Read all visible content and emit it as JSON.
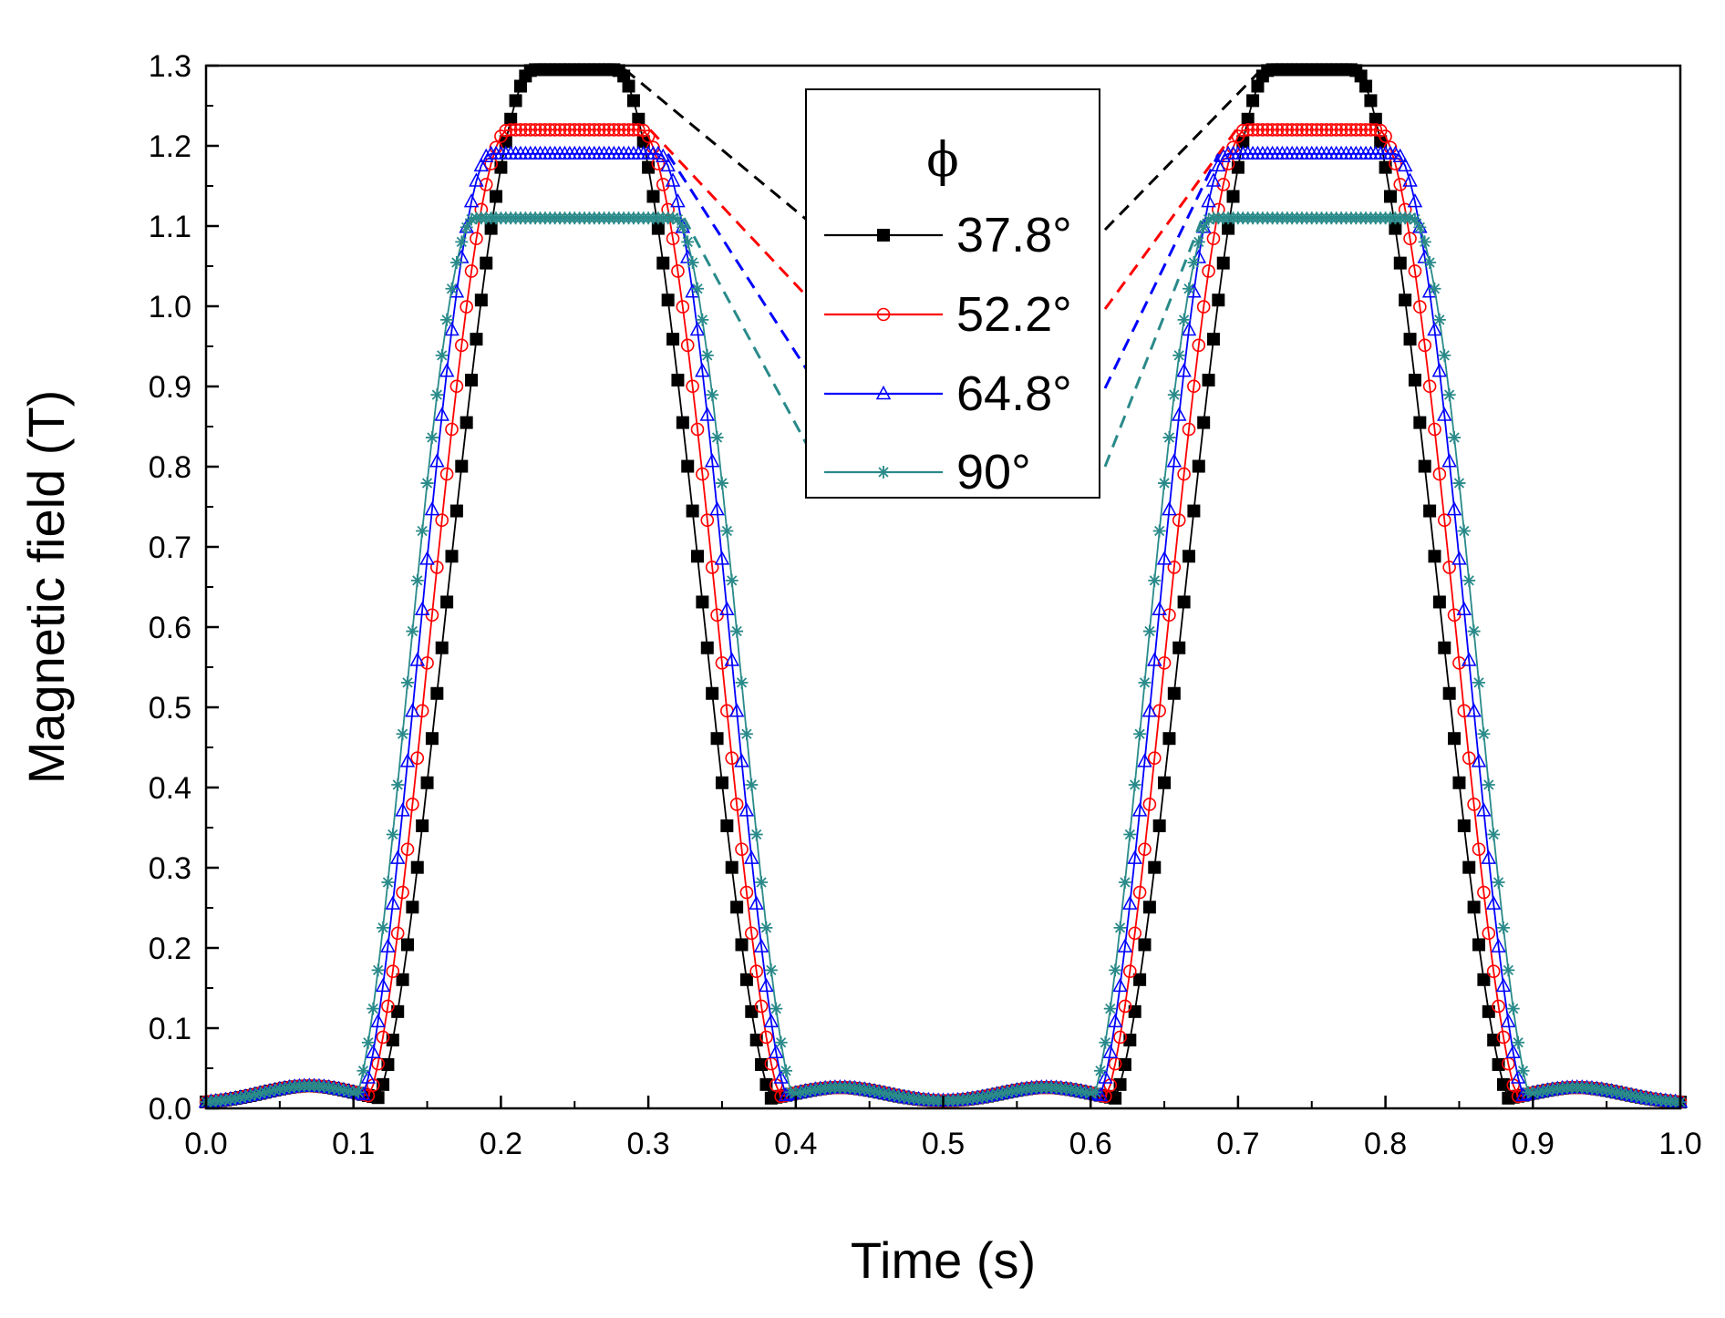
{
  "chart_data": {
    "type": "scatter",
    "xlabel": "Time (s)",
    "ylabel": "Magnetic field (T)",
    "xlim": [
      0.0,
      1.0
    ],
    "ylim": [
      0.0,
      1.3
    ],
    "xticks": [
      "0.0",
      "0.1",
      "0.2",
      "0.3",
      "0.4",
      "0.5",
      "0.6",
      "0.7",
      "0.8",
      "0.9",
      "1.0"
    ],
    "yticks": [
      "0.0",
      "0.1",
      "0.2",
      "0.3",
      "0.4",
      "0.5",
      "0.6",
      "0.7",
      "0.8",
      "0.9",
      "1.0",
      "1.1",
      "1.2",
      "1.3"
    ],
    "legend": {
      "title": "ϕ",
      "placement": "top-center",
      "entries": [
        "37.8°",
        "52.2°",
        "64.8°",
        "90°"
      ]
    },
    "series": [
      {
        "name": "37.8°",
        "color": "#000000",
        "marker": "square",
        "peak": 1.295,
        "pulses": [
          {
            "start": 0.112,
            "peak_start": 0.222,
            "peak_end": 0.278,
            "end": 0.388
          },
          {
            "start": 0.612,
            "peak_start": 0.722,
            "peak_end": 0.778,
            "end": 0.888
          }
        ]
      },
      {
        "name": "52.2°",
        "color": "#ff0000",
        "marker": "circle",
        "peak": 1.22,
        "pulses": [
          {
            "start": 0.106,
            "peak_start": 0.205,
            "peak_end": 0.295,
            "end": 0.394
          },
          {
            "start": 0.606,
            "peak_start": 0.705,
            "peak_end": 0.795,
            "end": 0.894
          }
        ]
      },
      {
        "name": "64.8°",
        "color": "#0000ff",
        "marker": "triangle",
        "peak": 1.19,
        "pulses": [
          {
            "start": 0.102,
            "peak_start": 0.193,
            "peak_end": 0.307,
            "end": 0.398
          },
          {
            "start": 0.602,
            "peak_start": 0.693,
            "peak_end": 0.807,
            "end": 0.898
          }
        ]
      },
      {
        "name": "90°",
        "color": "#2a8a8a",
        "marker": "star",
        "peak": 1.11,
        "pulses": [
          {
            "start": 0.098,
            "peak_start": 0.182,
            "peak_end": 0.318,
            "end": 0.402
          },
          {
            "start": 0.598,
            "peak_start": 0.682,
            "peak_end": 0.818,
            "end": 0.902
          }
        ]
      }
    ],
    "baseline": {
      "bumps": [
        {
          "x": 0.07,
          "y": 0.022
        },
        {
          "x": 0.43,
          "y": 0.02
        },
        {
          "x": 0.57,
          "y": 0.02
        },
        {
          "x": 0.93,
          "y": 0.02
        }
      ],
      "level_at_edges": 0.01
    }
  }
}
